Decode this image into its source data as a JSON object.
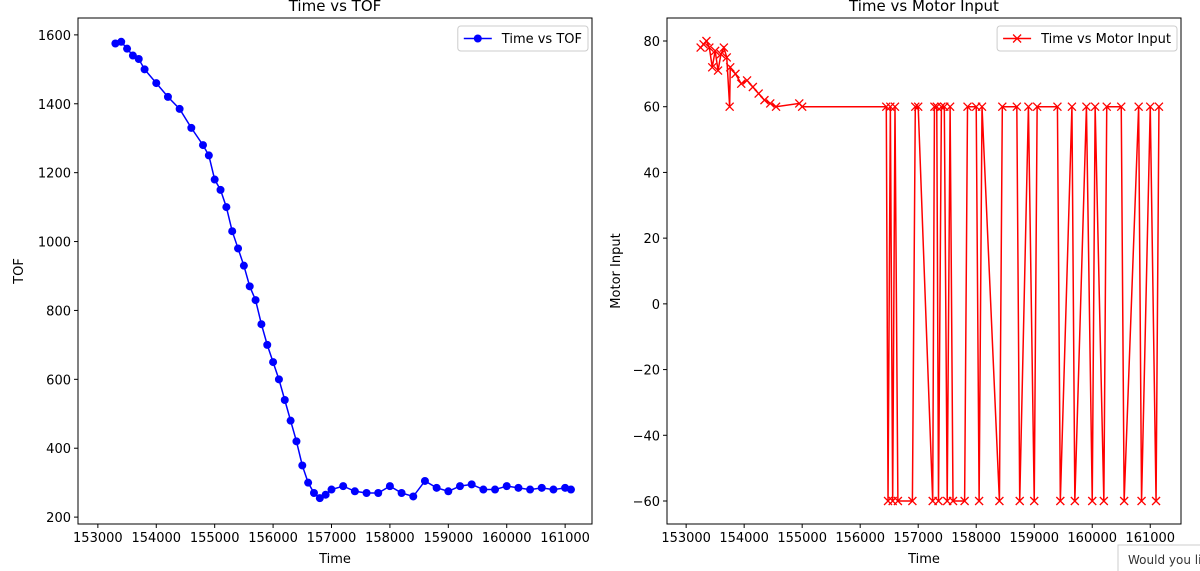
{
  "chart_data": [
    {
      "type": "line",
      "title": "Time vs TOF",
      "x_label": "Time",
      "y_label": "TOF",
      "series": [
        {
          "name": "Time vs TOF",
          "color": "#0000ff",
          "marker": "circle",
          "x": [
            153300,
            153400,
            153500,
            153600,
            153700,
            153800,
            154000,
            154200,
            154400,
            154600,
            154800,
            154900,
            155000,
            155100,
            155200,
            155300,
            155400,
            155500,
            155600,
            155700,
            155800,
            155900,
            156000,
            156100,
            156200,
            156300,
            156400,
            156500,
            156600,
            156700,
            156800,
            156900,
            157000,
            157200,
            157400,
            157600,
            157800,
            158000,
            158200,
            158400,
            158600,
            158800,
            159000,
            159200,
            159400,
            159600,
            159800,
            160000,
            160200,
            160400,
            160600,
            160800,
            161000,
            161100
          ],
          "values": [
            1575,
            1580,
            1560,
            1540,
            1530,
            1500,
            1460,
            1420,
            1385,
            1330,
            1280,
            1250,
            1180,
            1150,
            1100,
            1030,
            980,
            930,
            870,
            830,
            760,
            700,
            650,
            600,
            540,
            480,
            420,
            350,
            300,
            270,
            255,
            265,
            280,
            290,
            275,
            270,
            270,
            290,
            270,
            260,
            305,
            285,
            275,
            290,
            295,
            280,
            280,
            290,
            285,
            280,
            285,
            280,
            285,
            280
          ]
        }
      ],
      "xlim": [
        152660,
        161460
      ],
      "xticks": [
        153000,
        154000,
        155000,
        156000,
        157000,
        158000,
        159000,
        160000,
        161000
      ],
      "ylim": [
        180,
        1649
      ],
      "yticks": [
        200,
        400,
        600,
        800,
        1000,
        1200,
        1400,
        1600
      ],
      "legend": "upper right"
    },
    {
      "type": "line",
      "title": "Time vs Motor Input",
      "x_label": "Time",
      "y_label": "Motor Input",
      "series": [
        {
          "name": "Time vs Motor Input",
          "color": "#ff0000",
          "marker": "x",
          "x": [
            153250,
            153300,
            153350,
            153400,
            153450,
            153500,
            153550,
            153600,
            153650,
            153700,
            153750,
            153760,
            153850,
            153950,
            154050,
            154150,
            154250,
            154350,
            154450,
            154550,
            154950,
            155000,
            156450,
            156480,
            156520,
            156560,
            156600,
            156650,
            156900,
            156950,
            157000,
            157250,
            157280,
            157320,
            157350,
            157400,
            157450,
            157500,
            157550,
            157600,
            157800,
            157850,
            158000,
            158050,
            158100,
            158400,
            158450,
            158700,
            158750,
            158900,
            159000,
            159050,
            159400,
            159450,
            159650,
            159700,
            159900,
            160000,
            160050,
            160200,
            160250,
            160500,
            160550,
            160800,
            160850,
            161000,
            161100,
            161150
          ],
          "values": [
            78,
            79,
            80,
            78,
            72,
            77,
            71,
            76,
            78,
            75,
            60,
            72,
            70,
            67,
            68,
            66,
            64,
            62,
            61,
            60,
            61,
            60,
            60,
            -60,
            60,
            -60,
            60,
            -60,
            -60,
            60,
            60,
            -60,
            60,
            60,
            -60,
            60,
            60,
            -60,
            60,
            -60,
            -60,
            60,
            60,
            -60,
            60,
            -60,
            60,
            60,
            -60,
            60,
            -60,
            60,
            60,
            -60,
            60,
            -60,
            60,
            -60,
            60,
            -60,
            60,
            60,
            -60,
            60,
            -60,
            60,
            -60,
            60
          ]
        }
      ],
      "xlim": [
        152670,
        161530
      ],
      "xticks": [
        153000,
        154000,
        155000,
        156000,
        157000,
        158000,
        159000,
        160000,
        161000
      ],
      "ylim": [
        -67,
        87
      ],
      "yticks": [
        {
          "value": -60,
          "label": "−60"
        },
        {
          "value": -40,
          "label": "−40"
        },
        {
          "value": -20,
          "label": "−20"
        },
        0,
        20,
        40,
        60,
        80
      ],
      "legend": "upper right"
    }
  ],
  "popup_text": "Would you li"
}
